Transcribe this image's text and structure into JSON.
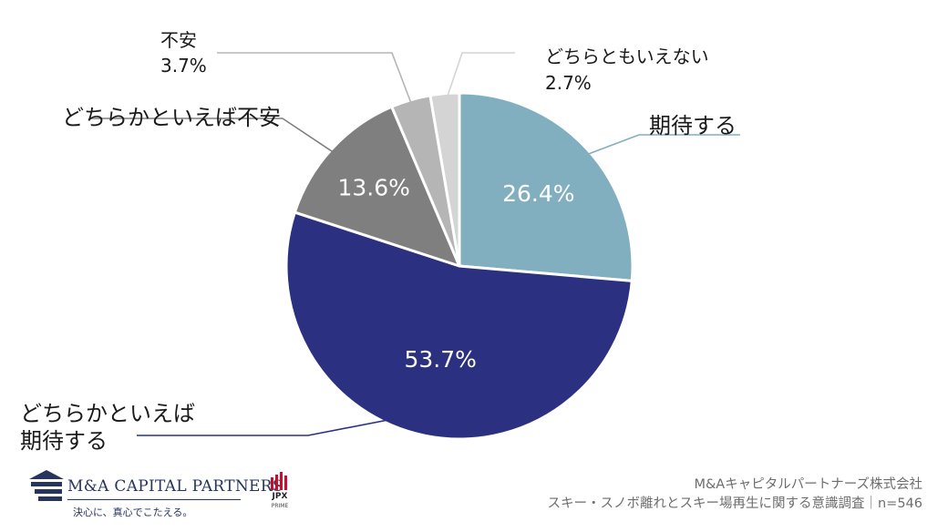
{
  "chart_data": {
    "type": "pie",
    "start_angle_deg": 0,
    "direction": "clockwise",
    "slices": [
      {
        "label": "期待する",
        "label_lines": [
          "期待する"
        ],
        "value": 26.4,
        "value_label": "26.4%",
        "color": "#82afbf",
        "label_position": "outside",
        "leader_color": "#82afbf"
      },
      {
        "label": "どちらかといえば期待する",
        "label_lines": [
          "どちらかといえば",
          "期待する"
        ],
        "value": 53.7,
        "value_label": "53.7%",
        "color": "#2b3180",
        "label_position": "outside",
        "leader_color": "#2b3180"
      },
      {
        "label": "どちらかといえば不安",
        "label_lines": [
          "どちらかといえば不安"
        ],
        "value": 13.6,
        "value_label": "13.6%",
        "color": "#7f7f7f",
        "label_position": "outside",
        "leader_color": "#7f7f7f"
      },
      {
        "label": "不安",
        "label_lines": [
          "不安",
          "3.7%"
        ],
        "value": 3.7,
        "value_label": "3.7%",
        "color": "#b5b5b5",
        "label_position": "outside-with-value",
        "leader_color": "#b5b5b5"
      },
      {
        "label": "どちらともいえない",
        "label_lines": [
          "どちらともいえない",
          "2.7%"
        ],
        "value": 2.7,
        "value_label": "2.7%",
        "color": "#d4d4d4",
        "label_position": "outside-with-value",
        "leader_color": "#d4d4d4"
      }
    ]
  },
  "footer": {
    "company_logo_text": "M&A CAPITAL PARTNERS",
    "company_tagline": "決心に、真心でこたえる。",
    "jpx_text": "JPX",
    "jpx_sub": "PRIME",
    "credit_company": "M&Aキャピタルパートナーズ株式会社",
    "credit_survey": "スキー・スノボ離れとスキー場再生に関する意識調査｜n=546"
  }
}
